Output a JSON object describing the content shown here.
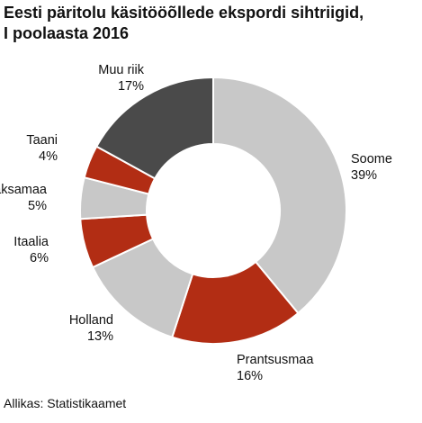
{
  "chart_data": {
    "type": "pie",
    "title_lines": [
      "Eesti päritolu käsitööõllede ekspordi sihtriigid,",
      "I poolaasta 2016"
    ],
    "slices": [
      {
        "label": "Soome",
        "value": 39,
        "display": "39%",
        "color": "#c8c8c8"
      },
      {
        "label": "Prantsusmaa",
        "value": 16,
        "display": "16%",
        "color": "#b22d14"
      },
      {
        "label": "Holland",
        "value": 13,
        "display": "13%",
        "color": "#c8c8c8"
      },
      {
        "label": "Itaalia",
        "value": 6,
        "display": "6%",
        "color": "#b22d14"
      },
      {
        "label": "Saksamaa",
        "value": 5,
        "display": "5%",
        "color": "#c8c8c8"
      },
      {
        "label": "Taani",
        "value": 4,
        "display": "4%",
        "color": "#b22d14"
      },
      {
        "label": "Muu riik",
        "value": 17,
        "display": "17%",
        "color": "#4a4a4a"
      }
    ],
    "donut": true,
    "legend": "none"
  },
  "source": "Allikas: Statistikaamet"
}
